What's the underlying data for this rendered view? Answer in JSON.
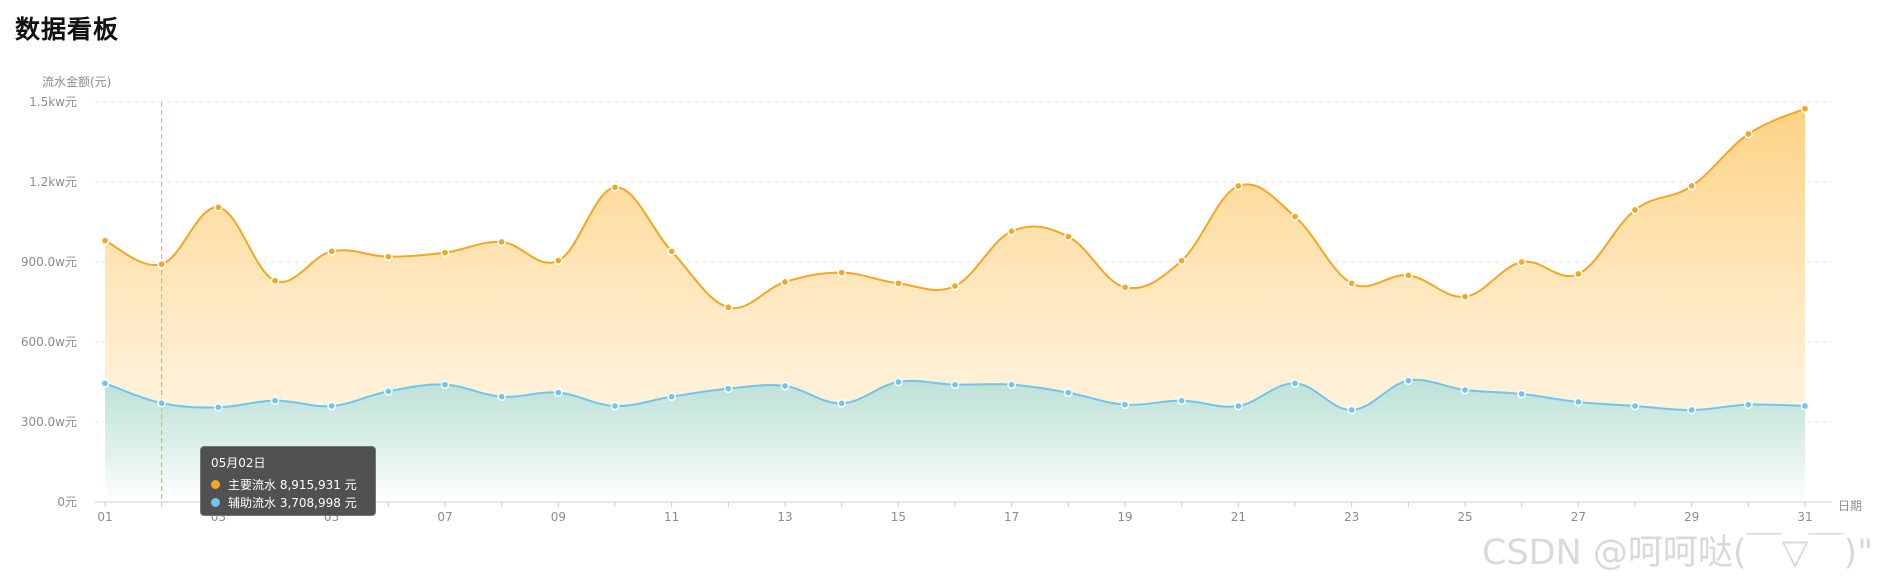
{
  "page": {
    "title": "数据看板"
  },
  "chart_data": {
    "type": "area",
    "ylabel": "流水金额(元)",
    "xlabel": "日期",
    "ylim": [
      0,
      15000000
    ],
    "y_ticks": [
      0,
      3000000,
      6000000,
      9000000,
      12000000,
      15000000
    ],
    "y_tick_labels": [
      "0元",
      "300.0w元",
      "600.0w元",
      "900.0w元",
      "1.2kw元",
      "1.5kw元"
    ],
    "x": [
      "01",
      "02",
      "03",
      "04",
      "05",
      "06",
      "07",
      "08",
      "09",
      "10",
      "11",
      "12",
      "13",
      "14",
      "15",
      "16",
      "17",
      "18",
      "19",
      "20",
      "21",
      "22",
      "23",
      "24",
      "25",
      "26",
      "27",
      "28",
      "29",
      "30",
      "31"
    ],
    "x_tick_labels": [
      "01",
      "03",
      "05",
      "07",
      "09",
      "11",
      "13",
      "15",
      "17",
      "19",
      "21",
      "23",
      "25",
      "27",
      "29",
      "31"
    ],
    "grid": true,
    "series": [
      {
        "name": "主要流水",
        "color": "#f5a623",
        "values": [
          9800000,
          8915931,
          11050000,
          8300000,
          9400000,
          9200000,
          9350000,
          9750000,
          9050000,
          11800000,
          9400000,
          7300000,
          8250000,
          8600000,
          8200000,
          8100000,
          10150000,
          9950000,
          8050000,
          9050000,
          11850000,
          10700000,
          8200000,
          8500000,
          7700000,
          9000000,
          8550000,
          10950000,
          11850000,
          13800000,
          14750000
        ]
      },
      {
        "name": "辅助流水",
        "color": "#6ec6ee",
        "values": [
          4450000,
          3708998,
          3550000,
          3800000,
          3600000,
          4150000,
          4400000,
          3950000,
          4100000,
          3600000,
          3950000,
          4250000,
          4350000,
          3700000,
          4500000,
          4400000,
          4400000,
          4100000,
          3650000,
          3800000,
          3600000,
          4450000,
          3450000,
          4550000,
          4200000,
          4050000,
          3750000,
          3600000,
          3450000,
          3650000,
          3600000
        ]
      }
    ]
  },
  "tooltip": {
    "title": "05月02日",
    "rows": [
      {
        "label": "主要流水 8,915,931 元",
        "color": "#f5a623"
      },
      {
        "label": "辅助流水 3,708,998 元",
        "color": "#6ec6ee"
      }
    ]
  },
  "watermark": "CSDN @呵呵哒(￣▽￣)\""
}
